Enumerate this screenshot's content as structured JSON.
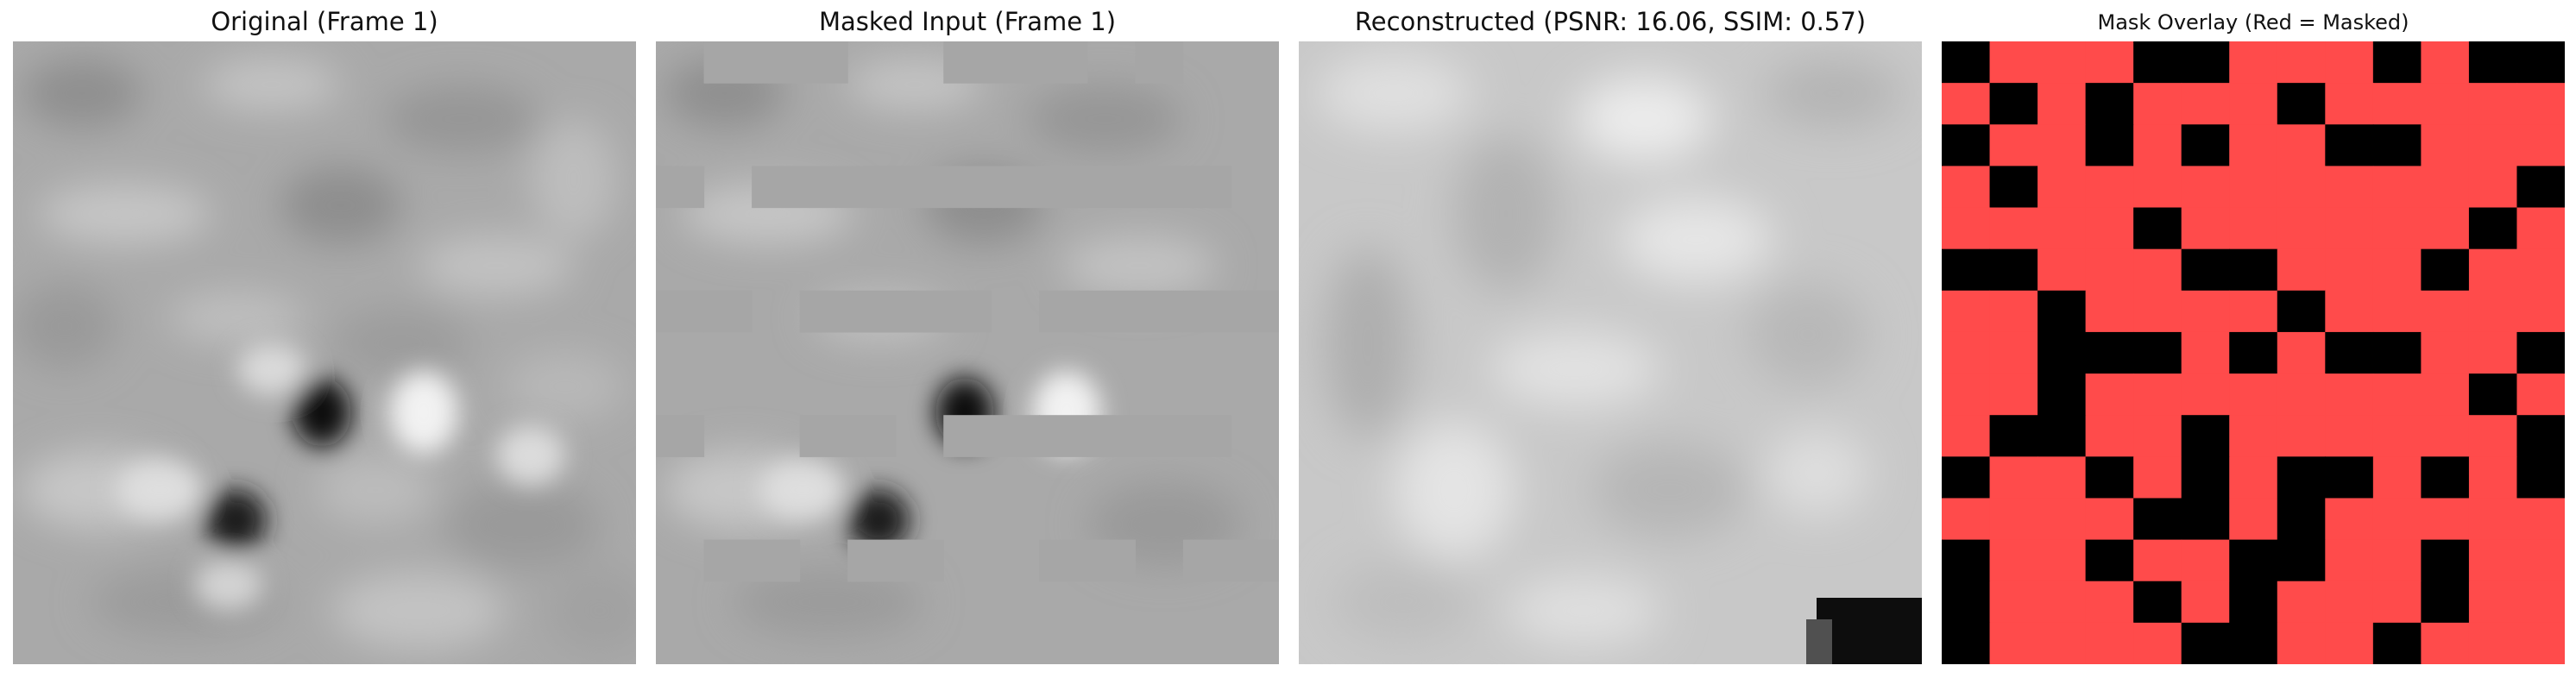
{
  "panels": [
    {
      "title": "Original (Frame 1)",
      "image": "grayscale-noise-frame"
    },
    {
      "title": "Masked Input (Frame 1)",
      "image": "masked-grayscale-frame"
    },
    {
      "title": "Reconstructed (PSNR: 16.06, SSIM: 0.57)",
      "image": "reconstructed-grayscale-frame"
    },
    {
      "title": "Mask Overlay (Red = Masked)",
      "image": "mask-overlay-grid"
    }
  ],
  "colors": {
    "masked": "#ff4b4b",
    "unmasked": "#000000",
    "fill_gray": "#a6a6a6"
  },
  "mask_grid": [
    "1000110001011",
    "0101000100000",
    "1001010011000",
    "0100000000001",
    "0000100000010",
    "1100011000100",
    "0010000100000",
    "0011101011001",
    "0010000000010",
    "0110010000001",
    "1001010110101",
    "0000110100000",
    "1001001100100",
    "1000101000100",
    "1000011001000"
  ]
}
